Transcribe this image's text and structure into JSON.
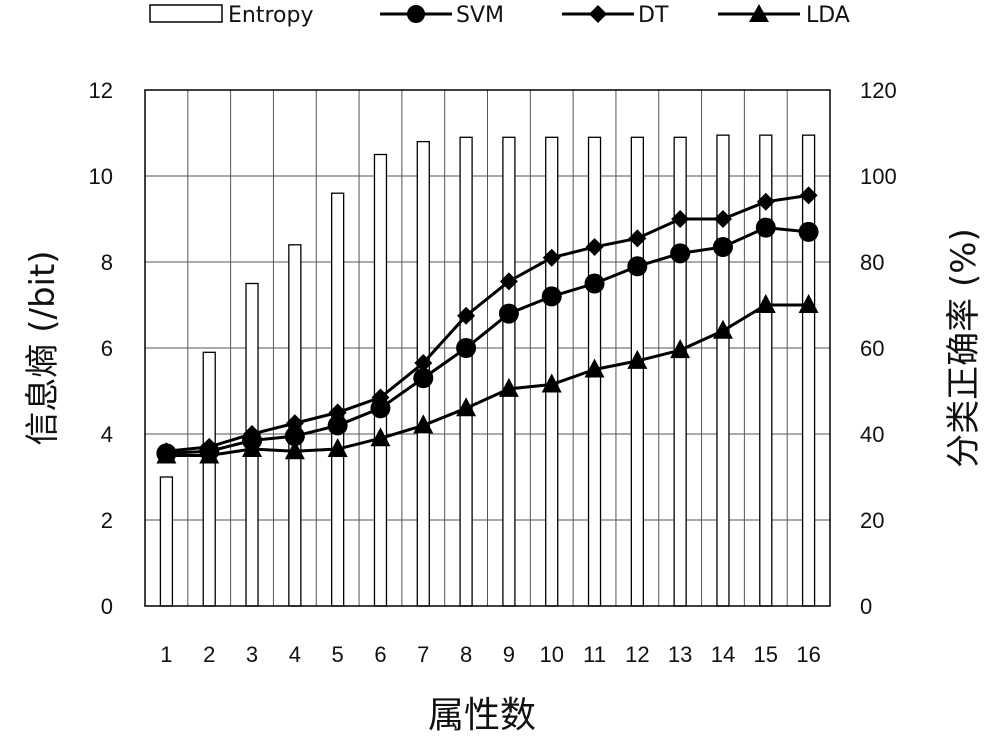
{
  "chart_data": {
    "type": "bar",
    "categories": [
      "1",
      "2",
      "3",
      "4",
      "5",
      "6",
      "7",
      "8",
      "9",
      "10",
      "11",
      "12",
      "13",
      "14",
      "15",
      "16"
    ],
    "xlabel": "属性数",
    "ylabel": "信息熵 (/bit)",
    "y2label": "分类正确率 (%)",
    "ylim": [
      0,
      12
    ],
    "y2lim": [
      0,
      120
    ],
    "yticks": [
      "0",
      "2",
      "4",
      "6",
      "8",
      "10",
      "12"
    ],
    "y2ticks": [
      "0",
      "20",
      "40",
      "60",
      "80",
      "100",
      "120"
    ],
    "grid": true,
    "legend_position": "top",
    "legend": {
      "entropy": "Entropy",
      "svm": "SVM",
      "dt": "DT",
      "lda": "LDA"
    },
    "series": [
      {
        "name": "Entropy",
        "type": "bar",
        "axis": "left",
        "values": [
          3.0,
          5.9,
          7.5,
          8.4,
          9.6,
          10.5,
          10.8,
          10.9,
          10.9,
          10.9,
          10.9,
          10.9,
          10.9,
          10.95,
          10.95,
          10.95
        ]
      },
      {
        "name": "SVM",
        "type": "line",
        "axis": "right",
        "marker": "circle",
        "values": [
          35.5,
          36,
          38.5,
          39.5,
          42,
          46,
          53,
          60,
          68,
          72,
          75,
          79,
          82,
          83.5,
          88,
          87
        ]
      },
      {
        "name": "DT",
        "type": "line",
        "axis": "right",
        "marker": "diamond",
        "values": [
          36,
          37,
          40,
          42.5,
          45,
          48.5,
          56.5,
          67.5,
          75.5,
          81,
          83.5,
          85.5,
          90,
          90,
          94,
          95.5
        ]
      },
      {
        "name": "LDA",
        "type": "line",
        "axis": "right",
        "marker": "triangle",
        "values": [
          35,
          35,
          36.5,
          36,
          36.5,
          39,
          42,
          46,
          50.5,
          51.5,
          55,
          57,
          59.5,
          64,
          70,
          70
        ]
      }
    ]
  }
}
